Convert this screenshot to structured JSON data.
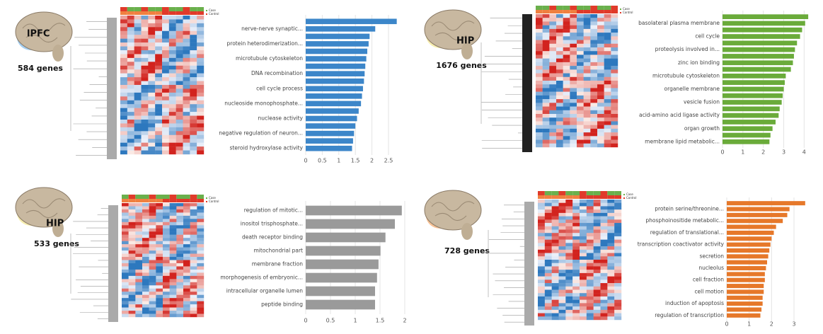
{
  "chart_data": [
    {
      "type": "bar",
      "orientation": "horizontal",
      "region": "lPFC",
      "annotation": "584 genes",
      "color": "#3c86c9",
      "heatmap_legend": [
        "Case",
        "Control"
      ],
      "categories": [
        null,
        "nerve-nerve synaptic...",
        null,
        "protein heterodimerization...",
        null,
        "microtubule cytoskeleton",
        null,
        "DNA recombination",
        null,
        "cell cycle process",
        null,
        "nucleoside monophosphate...",
        null,
        "nuclease activity",
        null,
        "negative regulation of neuron...",
        null,
        "steroid hydroxylase activity"
      ],
      "values": [
        2.75,
        2.1,
        1.93,
        1.9,
        1.86,
        1.83,
        1.8,
        1.78,
        1.76,
        1.73,
        1.7,
        1.67,
        1.6,
        1.55,
        1.5,
        1.46,
        1.43,
        1.4
      ],
      "xlim": [
        0,
        2.8
      ],
      "xticks": [
        0,
        0.5,
        1,
        1.5,
        2,
        2.5
      ],
      "grid": true
    },
    {
      "type": "bar",
      "orientation": "horizontal",
      "region": "HIP",
      "annotation": "1676 genes",
      "color": "#6aab3a",
      "heatmap_legend": [
        "Case",
        "Control"
      ],
      "categories": [
        null,
        "basolateral plasma membrane",
        null,
        "cell cycle",
        null,
        "proteolysis involved in...",
        null,
        "zinc ion binding",
        null,
        "microtubule cytoskeleton",
        null,
        "organelle membrane",
        null,
        "vesicle fusion",
        null,
        "acid-amino acid ligase activity",
        null,
        "organ growth",
        null,
        "membrane lipid metabolic..."
      ],
      "values": [
        4.2,
        4.05,
        3.9,
        3.8,
        3.65,
        3.55,
        3.5,
        3.45,
        3.35,
        3.1,
        3.05,
        3.0,
        2.95,
        2.9,
        2.8,
        2.75,
        2.6,
        2.45,
        2.35,
        2.3
      ],
      "xlim": [
        0,
        4.3
      ],
      "xticks": [
        0,
        1,
        2,
        3,
        4
      ],
      "grid": true
    },
    {
      "type": "bar",
      "orientation": "horizontal",
      "region": "HIP",
      "annotation": "533 genes",
      "color": "#9a9a9a",
      "heatmap_legend": [
        "Case",
        "Control"
      ],
      "categories": [
        "regulation of mitotic...",
        "inositol trisphosphate...",
        "death receptor binding",
        "mitochondrial part",
        "membrane fraction",
        "morphogenesis of embryonic...",
        "intracellular organelle lumen",
        "peptide binding"
      ],
      "values": [
        1.94,
        1.8,
        1.61,
        1.51,
        1.47,
        1.44,
        1.4,
        1.4
      ],
      "xlim": [
        0,
        2
      ],
      "xticks": [
        0,
        0.5,
        1,
        1.5,
        2
      ],
      "grid": true
    },
    {
      "type": "bar",
      "orientation": "horizontal",
      "annotation": "728 genes",
      "color": "#e6782a",
      "heatmap_legend": [
        "Case",
        "Control"
      ],
      "categories": [
        null,
        "protein serine/threonine...",
        null,
        "phosphoinositide metabolic...",
        null,
        "regulation of translational...",
        null,
        "transcription coactivator activity",
        null,
        "secretion",
        null,
        "nucleolus",
        null,
        "cell fraction",
        null,
        "cell motion",
        null,
        "induction of apoptosis",
        null,
        "regulation of transcription"
      ],
      "values": [
        3.5,
        2.8,
        2.7,
        2.5,
        2.2,
        2.1,
        2.0,
        1.95,
        1.9,
        1.85,
        1.8,
        1.75,
        1.7,
        1.7,
        1.65,
        1.65,
        1.6,
        1.6,
        1.55,
        1.5
      ],
      "xlim": [
        0,
        3.6
      ],
      "xticks": [
        0,
        1,
        2,
        3
      ],
      "grid": true
    }
  ]
}
